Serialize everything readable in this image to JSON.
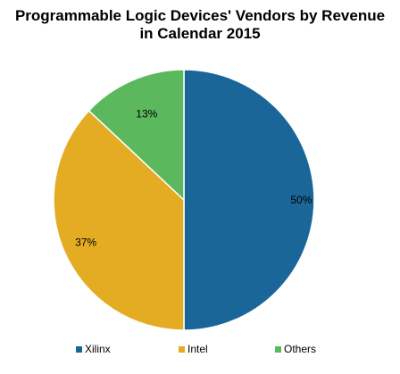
{
  "chart_data": {
    "type": "pie",
    "title_line1": "Programmable Logic Devices' Vendors by Revenue",
    "title_line2": "in Calendar 2015",
    "slices": [
      {
        "name": "Xilinx",
        "value": 50,
        "label": "50%",
        "color": "#1a6699"
      },
      {
        "name": "Intel",
        "value": 37,
        "label": "37%",
        "color": "#e3ac23"
      },
      {
        "name": "Others",
        "value": 13,
        "label": "13%",
        "color": "#5cb85c"
      }
    ],
    "start_angle_deg": 0,
    "direction": "clockwise",
    "legend_placement": "bottom"
  }
}
